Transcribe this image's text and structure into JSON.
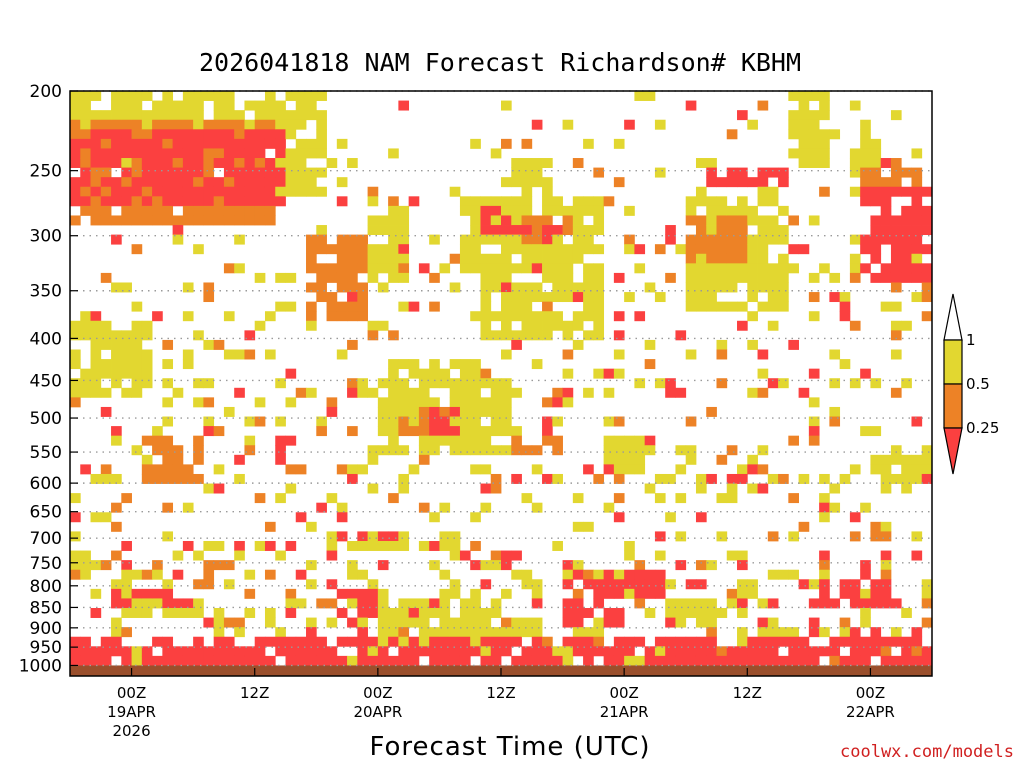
{
  "chart_data": {
    "type": "heatmap",
    "title": "2026041818 NAM Forecast Richardson# KBHM",
    "xlabel": "Forecast Time (UTC)",
    "ylabel": "",
    "credit": "coolwx.com/models",
    "y_axis": {
      "scale": "log-pressure",
      "range": [
        1000,
        200
      ],
      "ticks": [
        "200",
        "250",
        "300",
        "350",
        "400",
        "450",
        "500",
        "550",
        "600",
        "650",
        "700",
        "750",
        "800",
        "850",
        "900",
        "950",
        "1000"
      ]
    },
    "x_axis": {
      "range_hours": [
        0,
        84
      ],
      "ticks": [
        {
          "hour": 6,
          "line1": "00Z",
          "line2": "19APR",
          "line3": "2026"
        },
        {
          "hour": 18,
          "line1": "12Z",
          "line2": "",
          "line3": ""
        },
        {
          "hour": 30,
          "line1": "00Z",
          "line2": "20APR",
          "line3": ""
        },
        {
          "hour": 42,
          "line1": "12Z",
          "line2": "",
          "line3": ""
        },
        {
          "hour": 54,
          "line1": "00Z",
          "line2": "21APR",
          "line3": ""
        },
        {
          "hour": 66,
          "line1": "12Z",
          "line2": "",
          "line3": ""
        },
        {
          "hour": 78,
          "line1": "00Z",
          "line2": "22APR",
          "line3": ""
        }
      ]
    },
    "legend": {
      "placement": "right",
      "levels": [
        {
          "label": "1",
          "color": "#ffffff"
        },
        {
          "label": "0.5",
          "color": "#e2d730"
        },
        {
          "label": "0.25",
          "color": "#ed8226"
        },
        {
          "label": "",
          "color": "#fb4040"
        }
      ]
    },
    "colors": {
      "lt_025": "#fb4040",
      "025_05": "#ed8226",
      "05_1": "#e2d730",
      "ground": "#9a4f2c",
      "grid": "#9a9a9a"
    },
    "regions": [
      {
        "cat": 1,
        "t": [
          0,
          25
        ],
        "p": [
          200,
          248
        ]
      },
      {
        "cat": 2,
        "t": [
          0,
          20
        ],
        "p": [
          215,
          290
        ]
      },
      {
        "cat": 3,
        "t": [
          0,
          21
        ],
        "p": [
          222,
          275
        ]
      },
      {
        "cat": 1,
        "t": [
          20,
          25
        ],
        "p": [
          248,
          270
        ]
      },
      {
        "cat": 1,
        "t": [
          43,
          47
        ],
        "p": [
          240,
          270
        ]
      },
      {
        "cat": 3,
        "t": [
          40,
          44
        ],
        "p": [
          275,
          300
        ]
      },
      {
        "cat": 2,
        "t": [
          44,
          49
        ],
        "p": [
          280,
          310
        ]
      },
      {
        "cat": 1,
        "t": [
          38,
          52
        ],
        "p": [
          270,
          330
        ]
      },
      {
        "cat": 3,
        "t": [
          44,
          48
        ],
        "p": [
          295,
          310
        ]
      },
      {
        "cat": 2,
        "t": [
          23,
          29
        ],
        "p": [
          300,
          380
        ]
      },
      {
        "cat": 1,
        "t": [
          29,
          33
        ],
        "p": [
          280,
          340
        ]
      },
      {
        "cat": 1,
        "t": [
          40,
          52
        ],
        "p": [
          330,
          400
        ]
      },
      {
        "cat": 1,
        "t": [
          60,
          70
        ],
        "p": [
          270,
          370
        ]
      },
      {
        "cat": 2,
        "t": [
          60,
          66
        ],
        "p": [
          285,
          320
        ]
      },
      {
        "cat": 3,
        "t": [
          62,
          70
        ],
        "p": [
          250,
          265
        ]
      },
      {
        "cat": 1,
        "t": [
          70,
          74
        ],
        "p": [
          200,
          250
        ]
      },
      {
        "cat": 3,
        "t": [
          77,
          84
        ],
        "p": [
          260,
          340
        ]
      },
      {
        "cat": 1,
        "t": [
          76,
          79
        ],
        "p": [
          230,
          270
        ]
      },
      {
        "cat": 2,
        "t": [
          77,
          84
        ],
        "p": [
          250,
          270
        ]
      },
      {
        "cat": 1,
        "t": [
          0,
          8
        ],
        "p": [
          380,
          470
        ]
      },
      {
        "cat": 1,
        "t": [
          2,
          5
        ],
        "p": [
          580,
          605
        ]
      },
      {
        "cat": 2,
        "t": [
          7,
          13
        ],
        "p": [
          520,
          600
        ]
      },
      {
        "cat": 1,
        "t": [
          30,
          40
        ],
        "p": [
          420,
          560
        ]
      },
      {
        "cat": 2,
        "t": [
          32,
          37
        ],
        "p": [
          480,
          530
        ]
      },
      {
        "cat": 3,
        "t": [
          35,
          38
        ],
        "p": [
          490,
          520
        ]
      },
      {
        "cat": 1,
        "t": [
          37,
          44
        ],
        "p": [
          450,
          560
        ]
      },
      {
        "cat": 2,
        "t": [
          43,
          48
        ],
        "p": [
          520,
          555
        ]
      },
      {
        "cat": 1,
        "t": [
          52,
          56
        ],
        "p": [
          530,
          580
        ]
      },
      {
        "cat": 3,
        "t": [
          62,
          66
        ],
        "p": [
          590,
          605
        ]
      },
      {
        "cat": 3,
        "t": [
          82,
          84
        ],
        "p": [
          590,
          605
        ]
      },
      {
        "cat": 1,
        "t": [
          78,
          84
        ],
        "p": [
          560,
          600
        ]
      },
      {
        "cat": 1,
        "t": [
          0,
          2
        ],
        "p": [
          720,
          770
        ]
      },
      {
        "cat": 1,
        "t": [
          25,
          38
        ],
        "p": [
          680,
          720
        ]
      },
      {
        "cat": 3,
        "t": [
          26,
          32
        ],
        "p": [
          680,
          700
        ]
      },
      {
        "cat": 1,
        "t": [
          28,
          42
        ],
        "p": [
          820,
          900
        ]
      },
      {
        "cat": 3,
        "t": [
          26,
          30
        ],
        "p": [
          800,
          870
        ]
      },
      {
        "cat": 1,
        "t": [
          40,
          46
        ],
        "p": [
          870,
          930
        ]
      },
      {
        "cat": 3,
        "t": [
          48,
          54
        ],
        "p": [
          790,
          900
        ]
      },
      {
        "cat": 3,
        "t": [
          52,
          58
        ],
        "p": [
          770,
          820
        ]
      },
      {
        "cat": 1,
        "t": [
          58,
          66
        ],
        "p": [
          820,
          870
        ]
      },
      {
        "cat": 3,
        "t": [
          73,
          80
        ],
        "p": [
          780,
          860
        ]
      },
      {
        "cat": 3,
        "t": [
          0,
          84
        ],
        "p": [
          920,
          990
        ]
      },
      {
        "cat": 1,
        "t": [
          30,
          46
        ],
        "p": [
          900,
          950
        ]
      },
      {
        "cat": 3,
        "t": [
          4,
          12
        ],
        "p": [
          800,
          860
        ]
      },
      {
        "cat": 1,
        "t": [
          5,
          13
        ],
        "p": [
          830,
          880
        ]
      }
    ],
    "scatter_density": [
      {
        "p": [
          200,
          300
        ],
        "density": 0.08
      },
      {
        "p": [
          300,
          500
        ],
        "density": 0.14
      },
      {
        "p": [
          500,
          750
        ],
        "density": 0.16
      },
      {
        "p": [
          750,
          1000
        ],
        "density": 0.32
      }
    ]
  }
}
